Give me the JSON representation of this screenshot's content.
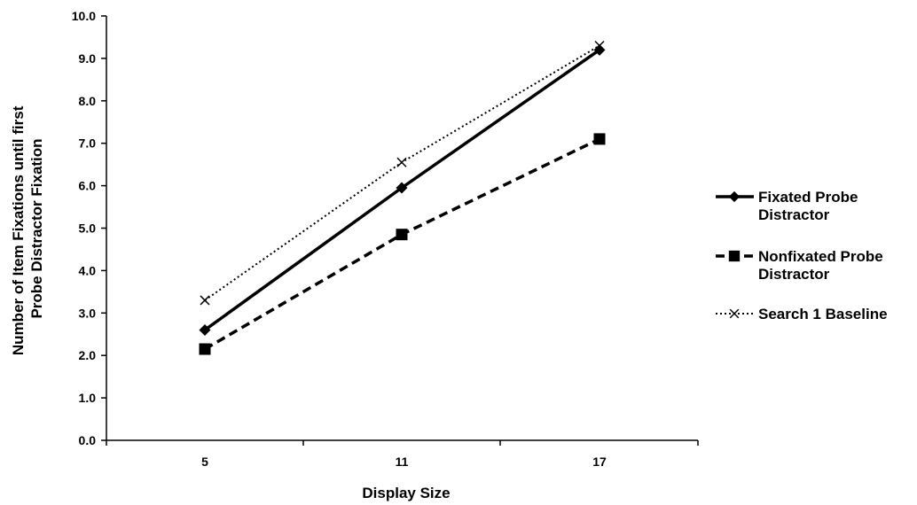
{
  "chart_data": {
    "type": "line",
    "x": [
      5,
      11,
      17
    ],
    "x_tick_labels": [
      "5",
      "11",
      "17"
    ],
    "xlabel": "Display Size",
    "ylabel_lines": [
      "Number of Item Fixations until first",
      "Probe Distractor  Fixation"
    ],
    "ylim": [
      0,
      10
    ],
    "y_tick_labels": [
      "0.0",
      "1.0",
      "2.0",
      "3.0",
      "4.0",
      "5.0",
      "6.0",
      "7.0",
      "8.0",
      "9.0",
      "10.0"
    ],
    "grid": false,
    "legend_position": "right",
    "series": [
      {
        "name_lines": [
          "Fixated Probe",
          "Distractor"
        ],
        "values": [
          2.6,
          5.95,
          9.2
        ],
        "line_style": "solid",
        "marker": "diamond",
        "color": "#000000"
      },
      {
        "name_lines": [
          "Nonfixated Probe",
          "Distractor"
        ],
        "values": [
          2.15,
          4.85,
          7.1
        ],
        "line_style": "dashed",
        "marker": "square",
        "color": "#000000"
      },
      {
        "name_lines": [
          "Search 1 Baseline"
        ],
        "values": [
          3.3,
          6.55,
          9.3
        ],
        "line_style": "dotted",
        "marker": "x",
        "color": "#000000"
      }
    ]
  }
}
